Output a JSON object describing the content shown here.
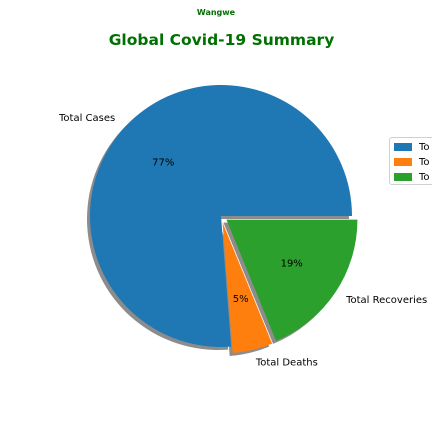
{
  "suptitle": "Wangwe",
  "title": "Global Covid-19 Summary",
  "title_color": "#007000",
  "chart_data": {
    "type": "pie",
    "title": "Global Covid-19 Summary",
    "slices": [
      {
        "label": "Total Cases",
        "value": 77,
        "pct_label": "77%",
        "color": "#1f77b4",
        "explode": false
      },
      {
        "label": "Total Deaths",
        "value": 5,
        "pct_label": "5%",
        "color": "#ff7f0e",
        "explode": true
      },
      {
        "label": "Total Recoveries",
        "value": 19,
        "pct_label": "19%",
        "color": "#2ca02c",
        "explode": true
      }
    ],
    "shadow": true,
    "start_angle_deg": 0,
    "legend_position": "right",
    "legend_entries": [
      "To",
      "To",
      "To"
    ]
  }
}
